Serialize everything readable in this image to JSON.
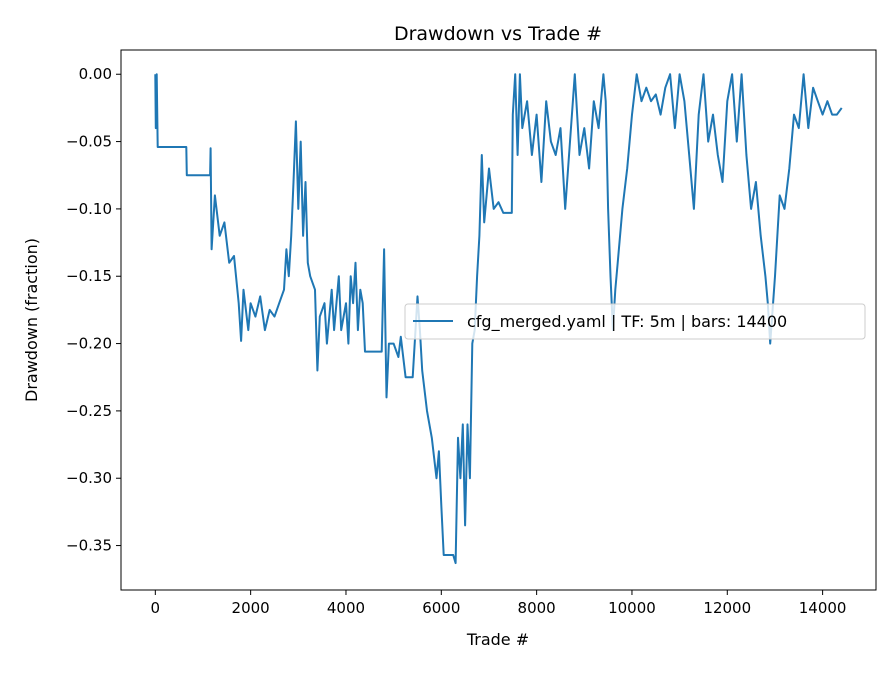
{
  "chart_data": {
    "type": "line",
    "title": "Drawdown vs Trade #",
    "xlabel": "Trade #",
    "ylabel": "Drawdown (fraction)",
    "xlim": [
      -720,
      15120
    ],
    "ylim": [
      -0.383,
      0.018
    ],
    "xticks": [
      0,
      2000,
      4000,
      6000,
      8000,
      10000,
      12000,
      14000
    ],
    "yticks": [
      0.0,
      -0.05,
      -0.1,
      -0.15,
      -0.2,
      -0.25,
      -0.3,
      -0.35
    ],
    "ytick_labels": [
      "0.00",
      "−0.05",
      "−0.10",
      "−0.15",
      "−0.20",
      "−0.25",
      "−0.30",
      "−0.35"
    ],
    "grid": false,
    "legend_placement": "center-right",
    "colors": {
      "series": "#1f77b4"
    },
    "series": [
      {
        "name": "cfg_merged.yaml | TF: 5m | bars: 14400",
        "points": [
          [
            0,
            0
          ],
          [
            10,
            -0.04
          ],
          [
            30,
            0
          ],
          [
            50,
            -0.054
          ],
          [
            650,
            -0.054
          ],
          [
            660,
            -0.075
          ],
          [
            1150,
            -0.075
          ],
          [
            1160,
            -0.055
          ],
          [
            1180,
            -0.13
          ],
          [
            1250,
            -0.09
          ],
          [
            1350,
            -0.12
          ],
          [
            1450,
            -0.11
          ],
          [
            1550,
            -0.14
          ],
          [
            1650,
            -0.135
          ],
          [
            1750,
            -0.17
          ],
          [
            1800,
            -0.198
          ],
          [
            1850,
            -0.16
          ],
          [
            1950,
            -0.19
          ],
          [
            2000,
            -0.17
          ],
          [
            2100,
            -0.18
          ],
          [
            2200,
            -0.165
          ],
          [
            2300,
            -0.19
          ],
          [
            2400,
            -0.175
          ],
          [
            2500,
            -0.18
          ],
          [
            2600,
            -0.17
          ],
          [
            2700,
            -0.16
          ],
          [
            2750,
            -0.13
          ],
          [
            2800,
            -0.15
          ],
          [
            2850,
            -0.12
          ],
          [
            2900,
            -0.08
          ],
          [
            2950,
            -0.035
          ],
          [
            3000,
            -0.1
          ],
          [
            3050,
            -0.05
          ],
          [
            3100,
            -0.12
          ],
          [
            3150,
            -0.08
          ],
          [
            3200,
            -0.14
          ],
          [
            3250,
            -0.15
          ],
          [
            3350,
            -0.16
          ],
          [
            3400,
            -0.22
          ],
          [
            3450,
            -0.18
          ],
          [
            3550,
            -0.17
          ],
          [
            3600,
            -0.2
          ],
          [
            3700,
            -0.16
          ],
          [
            3750,
            -0.19
          ],
          [
            3850,
            -0.15
          ],
          [
            3900,
            -0.19
          ],
          [
            4000,
            -0.17
          ],
          [
            4050,
            -0.2
          ],
          [
            4100,
            -0.15
          ],
          [
            4150,
            -0.17
          ],
          [
            4200,
            -0.14
          ],
          [
            4250,
            -0.19
          ],
          [
            4300,
            -0.16
          ],
          [
            4350,
            -0.17
          ],
          [
            4400,
            -0.206
          ],
          [
            4750,
            -0.206
          ],
          [
            4800,
            -0.13
          ],
          [
            4850,
            -0.24
          ],
          [
            4900,
            -0.2
          ],
          [
            5000,
            -0.2
          ],
          [
            5100,
            -0.21
          ],
          [
            5150,
            -0.195
          ],
          [
            5250,
            -0.225
          ],
          [
            5400,
            -0.225
          ],
          [
            5500,
            -0.165
          ],
          [
            5550,
            -0.19
          ],
          [
            5600,
            -0.22
          ],
          [
            5700,
            -0.25
          ],
          [
            5800,
            -0.27
          ],
          [
            5900,
            -0.3
          ],
          [
            5950,
            -0.28
          ],
          [
            6000,
            -0.32
          ],
          [
            6050,
            -0.357
          ],
          [
            6250,
            -0.357
          ],
          [
            6300,
            -0.363
          ],
          [
            6350,
            -0.27
          ],
          [
            6400,
            -0.3
          ],
          [
            6450,
            -0.26
          ],
          [
            6500,
            -0.335
          ],
          [
            6550,
            -0.26
          ],
          [
            6600,
            -0.3
          ],
          [
            6650,
            -0.2
          ],
          [
            6700,
            -0.19
          ],
          [
            6750,
            -0.15
          ],
          [
            6800,
            -0.12
          ],
          [
            6850,
            -0.06
          ],
          [
            6900,
            -0.11
          ],
          [
            7000,
            -0.07
          ],
          [
            7100,
            -0.1
          ],
          [
            7200,
            -0.095
          ],
          [
            7300,
            -0.103
          ],
          [
            7480,
            -0.103
          ],
          [
            7500,
            -0.03
          ],
          [
            7550,
            0
          ],
          [
            7600,
            -0.06
          ],
          [
            7650,
            0
          ],
          [
            7700,
            -0.04
          ],
          [
            7800,
            -0.02
          ],
          [
            7900,
            -0.06
          ],
          [
            8000,
            -0.03
          ],
          [
            8100,
            -0.08
          ],
          [
            8200,
            -0.02
          ],
          [
            8300,
            -0.05
          ],
          [
            8400,
            -0.06
          ],
          [
            8500,
            -0.04
          ],
          [
            8600,
            -0.1
          ],
          [
            8700,
            -0.05
          ],
          [
            8800,
            0
          ],
          [
            8900,
            -0.06
          ],
          [
            9000,
            -0.04
          ],
          [
            9100,
            -0.07
          ],
          [
            9200,
            -0.02
          ],
          [
            9300,
            -0.04
          ],
          [
            9400,
            0
          ],
          [
            9450,
            -0.02
          ],
          [
            9500,
            -0.1
          ],
          [
            9550,
            -0.15
          ],
          [
            9600,
            -0.19
          ],
          [
            9650,
            -0.16
          ],
          [
            9700,
            -0.14
          ],
          [
            9800,
            -0.1
          ],
          [
            9900,
            -0.07
          ],
          [
            10000,
            -0.03
          ],
          [
            10100,
            0
          ],
          [
            10200,
            -0.02
          ],
          [
            10300,
            -0.01
          ],
          [
            10400,
            -0.02
          ],
          [
            10500,
            -0.015
          ],
          [
            10600,
            -0.03
          ],
          [
            10700,
            -0.01
          ],
          [
            10800,
            0
          ],
          [
            10900,
            -0.04
          ],
          [
            11000,
            0
          ],
          [
            11100,
            -0.02
          ],
          [
            11200,
            -0.06
          ],
          [
            11300,
            -0.1
          ],
          [
            11400,
            -0.03
          ],
          [
            11500,
            0
          ],
          [
            11600,
            -0.05
          ],
          [
            11700,
            -0.03
          ],
          [
            11800,
            -0.06
          ],
          [
            11900,
            -0.08
          ],
          [
            12000,
            -0.02
          ],
          [
            12100,
            0
          ],
          [
            12200,
            -0.05
          ],
          [
            12300,
            0
          ],
          [
            12400,
            -0.06
          ],
          [
            12500,
            -0.1
          ],
          [
            12600,
            -0.08
          ],
          [
            12700,
            -0.12
          ],
          [
            12800,
            -0.15
          ],
          [
            12850,
            -0.17
          ],
          [
            12900,
            -0.2
          ],
          [
            13000,
            -0.15
          ],
          [
            13100,
            -0.09
          ],
          [
            13200,
            -0.1
          ],
          [
            13300,
            -0.07
          ],
          [
            13400,
            -0.03
          ],
          [
            13500,
            -0.04
          ],
          [
            13600,
            0
          ],
          [
            13700,
            -0.04
          ],
          [
            13800,
            -0.01
          ],
          [
            13900,
            -0.02
          ],
          [
            14000,
            -0.03
          ],
          [
            14100,
            -0.02
          ],
          [
            14200,
            -0.03
          ],
          [
            14300,
            -0.03
          ],
          [
            14400,
            -0.025
          ]
        ]
      }
    ]
  }
}
